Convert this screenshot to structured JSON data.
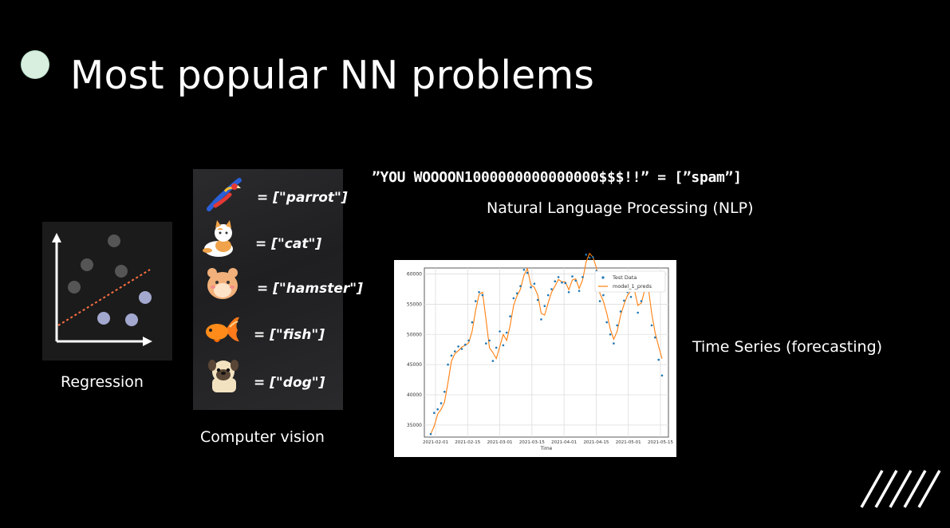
{
  "slide": {
    "title": "Most popular NN problems",
    "accent_color": "#d8efe0"
  },
  "regression": {
    "caption": "Regression",
    "icon": "scatter-with-trend-line-icon"
  },
  "computer_vision": {
    "caption": "Computer vision",
    "items": [
      {
        "icon": "parrot-icon",
        "label": "= [\"parrot\"]"
      },
      {
        "icon": "cat-icon",
        "label": "= [\"cat\"]"
      },
      {
        "icon": "hamster-icon",
        "label": "= [\"hamster\"]"
      },
      {
        "icon": "fish-icon",
        "label": "= [\"fish\"]"
      },
      {
        "icon": "dog-icon",
        "label": "= [\"dog\"]"
      }
    ]
  },
  "nlp": {
    "example": "”YOU WOOOON1000000000000000$$$!!” = [”spam”]",
    "caption": "Natural Language Processing (NLP)"
  },
  "time_series": {
    "caption": "Time Series (forecasting)"
  },
  "chart_data": {
    "type": "line",
    "xlabel": "Time",
    "ylabel": "",
    "x_ticks": [
      "2021-02-01",
      "2021-02-15",
      "2021-03-01",
      "2021-03-15",
      "2021-04-01",
      "2021-04-15",
      "2021-05-01",
      "2021-05-15"
    ],
    "y_ticks": [
      35000,
      40000,
      45000,
      50000,
      55000,
      60000
    ],
    "ylim": [
      33000,
      61000
    ],
    "grid": true,
    "legend": "top-right",
    "series": [
      {
        "name": "Test Data",
        "style": "scatter",
        "color": "#1f77b4",
        "values": [
          33500,
          37000,
          37600,
          38600,
          40500,
          45000,
          46500,
          47200,
          48000,
          47600,
          48300,
          49000,
          52000,
          55500,
          57000,
          56500,
          48500,
          49000,
          45600,
          47800,
          50500,
          48200,
          50300,
          53000,
          56000,
          56800,
          58000,
          60700,
          60200,
          57800,
          58400,
          55700,
          52500,
          54700,
          56500,
          57500,
          58800,
          59500,
          58600,
          58500,
          57000,
          59600,
          58900,
          57200,
          59500,
          63200,
          62700,
          62800,
          60500,
          55500,
          56500,
          52000,
          50000,
          48500,
          51500,
          53800,
          55600,
          57000,
          56200,
          57500,
          53600,
          55500,
          58600,
          57700,
          51500,
          49500,
          45800,
          43200
        ]
      },
      {
        "name": "model_1_preds",
        "style": "line",
        "color": "#ff7f0e",
        "values": [
          33500,
          34800,
          36800,
          37600,
          38800,
          42000,
          45600,
          46800,
          47300,
          47900,
          48200,
          48600,
          50500,
          54000,
          56600,
          57000,
          52500,
          47800,
          47000,
          46000,
          48000,
          50000,
          49000,
          51500,
          54800,
          56400,
          57500,
          59800,
          60900,
          58200,
          57800,
          56500,
          53500,
          53200,
          55200,
          57000,
          58000,
          59100,
          58700,
          58700,
          57400,
          59000,
          59200,
          57600,
          59000,
          62000,
          63400,
          62800,
          61000,
          56800,
          55500,
          53500,
          50900,
          49200,
          50500,
          53200,
          55000,
          56500,
          57200,
          57300,
          54800,
          55200,
          57400,
          57800,
          53500,
          50300,
          48000,
          46000
        ]
      }
    ]
  }
}
